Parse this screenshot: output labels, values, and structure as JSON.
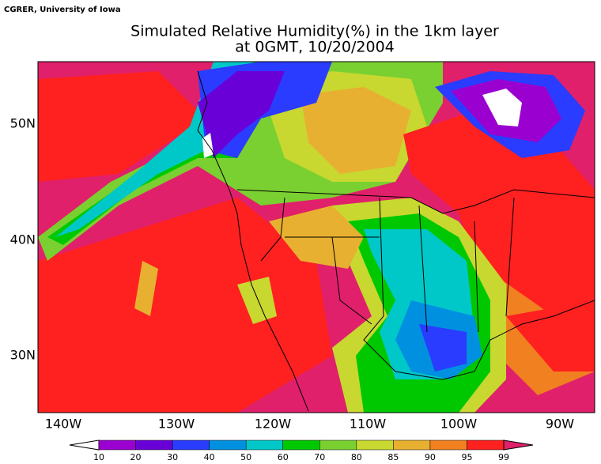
{
  "header": {
    "source": "CGRER, University of Iowa",
    "title": [
      "Simulated Relative Humidity(%) in the 1km layer",
      "at 0GMT, 10/20/2004"
    ]
  },
  "axes": {
    "lon_labels": [
      "140W",
      "130W",
      "120W",
      "110W",
      "100W",
      "90W"
    ],
    "lat_labels": [
      "50N",
      "40N",
      "30N"
    ]
  },
  "colorbar": {
    "levels": [
      10,
      20,
      30,
      40,
      50,
      60,
      70,
      80,
      85,
      90,
      95,
      99
    ],
    "colors": [
      "#ffffff",
      "#9a00d0",
      "#6a00d8",
      "#2a3cff",
      "#0090e0",
      "#00c8c8",
      "#00c800",
      "#7ad030",
      "#c8d830",
      "#e8b030",
      "#f08020",
      "#ff2020",
      "#e0206a"
    ]
  }
}
